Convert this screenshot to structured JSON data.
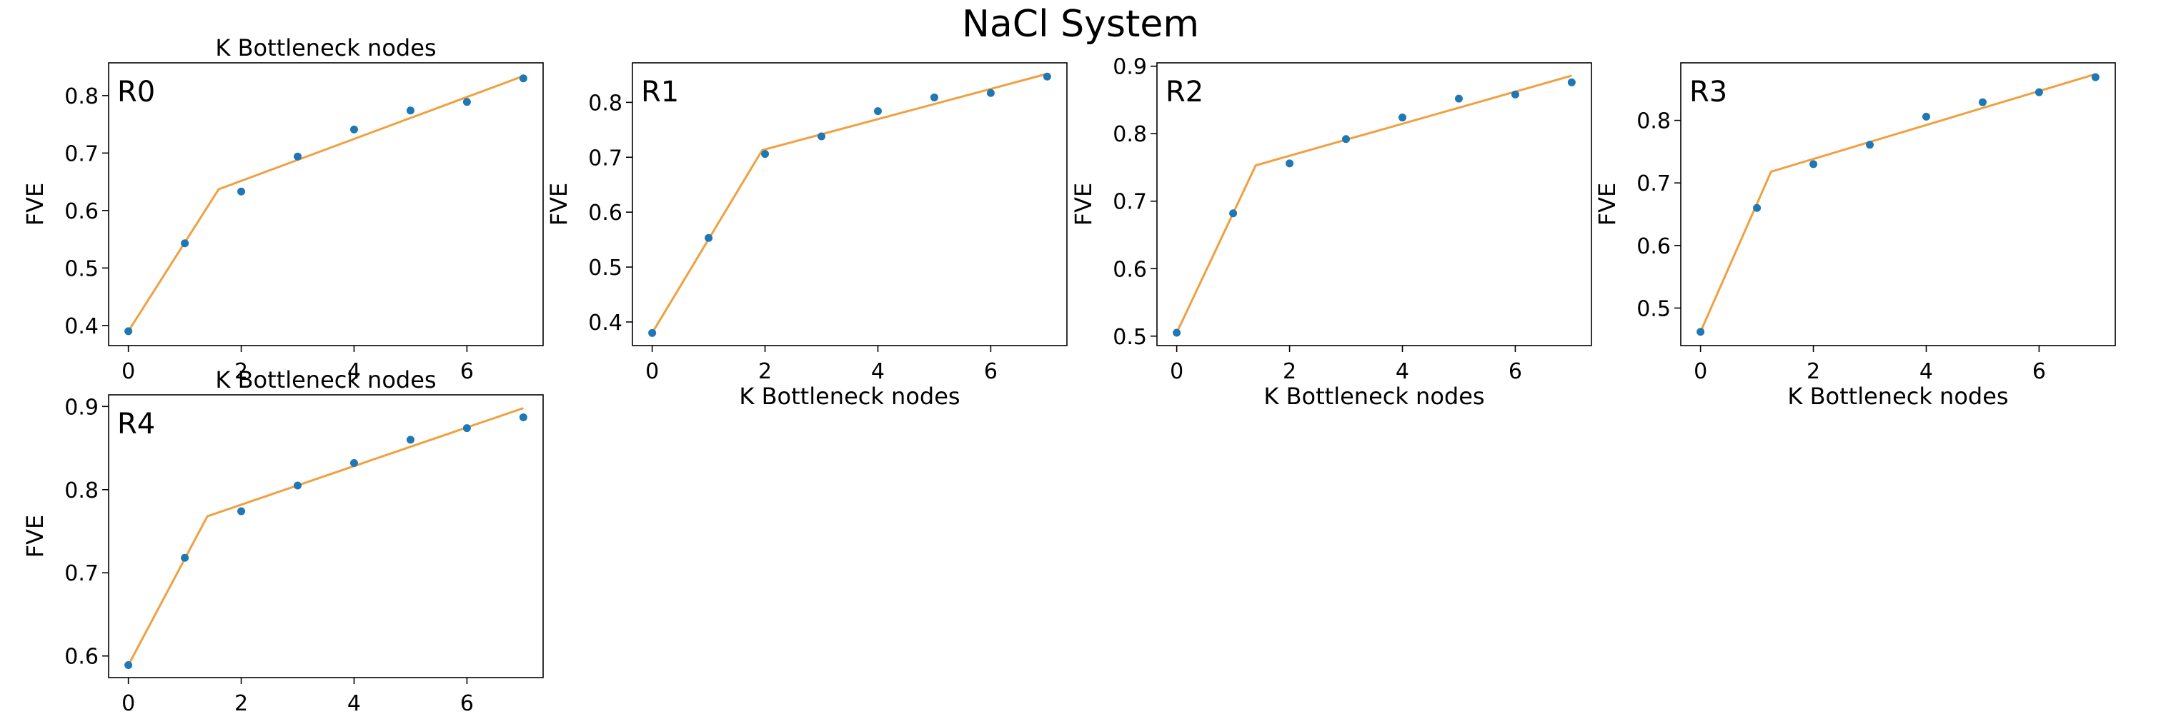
{
  "figure_title": "NaCl System",
  "colors": {
    "points": "#1f77b4",
    "fit": "#f0a040",
    "frame": "#000000"
  },
  "chart_data": [
    {
      "type": "scatter",
      "panel_label": "R0",
      "title": "K Bottleneck nodes",
      "xlabel": "",
      "ylabel": "FVE",
      "xlim": [
        -0.35,
        7.35
      ],
      "ylim": [
        0.365,
        0.857
      ],
      "xticks": [
        0,
        2,
        4,
        6
      ],
      "yticks": [
        0.4,
        0.5,
        0.6,
        0.7,
        0.8
      ],
      "x": [
        0,
        1,
        2,
        3,
        4,
        5,
        6,
        7
      ],
      "y": [
        0.39,
        0.543,
        0.633,
        0.694,
        0.741,
        0.774,
        0.789,
        0.83
      ],
      "fit_line": {
        "x": [
          0,
          1.6,
          7
        ],
        "y": [
          0.39,
          0.637,
          0.834
        ]
      }
    },
    {
      "type": "scatter",
      "panel_label": "R1",
      "title": "",
      "xlabel": "K Bottleneck nodes",
      "ylabel": "FVE",
      "xlim": [
        -0.35,
        7.35
      ],
      "ylim": [
        0.357,
        0.872
      ],
      "xticks": [
        0,
        2,
        4,
        6
      ],
      "yticks": [
        0.4,
        0.5,
        0.6,
        0.7,
        0.8
      ],
      "x": [
        0,
        1,
        2,
        3,
        4,
        5,
        6,
        7
      ],
      "y": [
        0.38,
        0.553,
        0.706,
        0.738,
        0.784,
        0.809,
        0.817,
        0.847
      ],
      "fit_line": {
        "x": [
          0,
          1.95,
          7
        ],
        "y": [
          0.38,
          0.713,
          0.852
        ]
      }
    },
    {
      "type": "scatter",
      "panel_label": "R2",
      "title": "",
      "xlabel": "K Bottleneck nodes",
      "ylabel": "FVE",
      "xlim": [
        -0.35,
        7.35
      ],
      "ylim": [
        0.486,
        0.905
      ],
      "xticks": [
        0,
        2,
        4,
        6
      ],
      "yticks": [
        0.5,
        0.6,
        0.7,
        0.8,
        0.9
      ],
      "x": [
        0,
        1,
        2,
        3,
        4,
        5,
        6,
        7
      ],
      "y": [
        0.505,
        0.682,
        0.756,
        0.792,
        0.824,
        0.852,
        0.858,
        0.876
      ],
      "fit_line": {
        "x": [
          0,
          1.4,
          7
        ],
        "y": [
          0.505,
          0.753,
          0.886
        ]
      }
    },
    {
      "type": "scatter",
      "panel_label": "R3",
      "title": "",
      "xlabel": "K Bottleneck nodes",
      "ylabel": "FVE",
      "xlim": [
        -0.35,
        7.35
      ],
      "ylim": [
        0.44,
        0.892
      ],
      "xticks": [
        0,
        2,
        4,
        6
      ],
      "yticks": [
        0.5,
        0.6,
        0.7,
        0.8
      ],
      "x": [
        0,
        1,
        2,
        3,
        4,
        5,
        6,
        7
      ],
      "y": [
        0.462,
        0.66,
        0.73,
        0.761,
        0.806,
        0.829,
        0.845,
        0.869
      ],
      "fit_line": {
        "x": [
          0,
          1.25,
          7
        ],
        "y": [
          0.462,
          0.718,
          0.874
        ]
      }
    },
    {
      "type": "scatter",
      "panel_label": "R4",
      "title": "K Bottleneck nodes",
      "xlabel": "",
      "ylabel": "FVE",
      "xlim": [
        -0.35,
        7.35
      ],
      "ylim": [
        0.574,
        0.914
      ],
      "xticks": [
        0,
        2,
        4,
        6
      ],
      "yticks": [
        0.6,
        0.7,
        0.8,
        0.9
      ],
      "x": [
        0,
        1,
        2,
        3,
        4,
        5,
        6,
        7
      ],
      "y": [
        0.589,
        0.718,
        0.774,
        0.805,
        0.832,
        0.86,
        0.874,
        0.887
      ],
      "fit_line": {
        "x": [
          0,
          1.4,
          7
        ],
        "y": [
          0.589,
          0.768,
          0.898
        ]
      }
    }
  ]
}
